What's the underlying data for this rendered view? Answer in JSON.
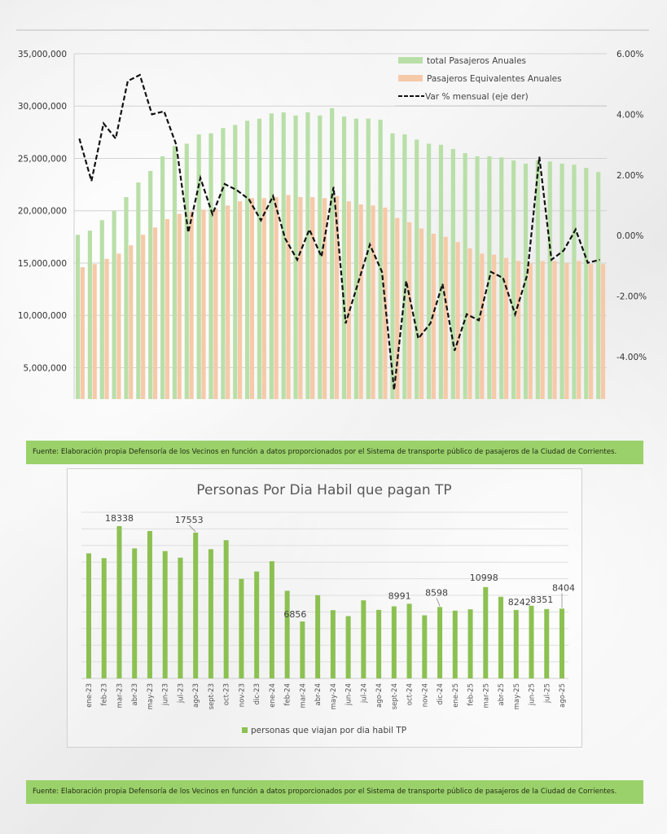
{
  "colors": {
    "total": "#b9dfa8",
    "equivalentes": "#f6c9a8",
    "line": "#111111",
    "bars2": "#8cc152",
    "note_bg": "#9bd16a"
  },
  "chart_data": [
    {
      "type": "bar+line",
      "title": "",
      "categories_count": 44,
      "left_axis": {
        "ylim": [
          2000000,
          35000000
        ],
        "ticks": [
          "35,000,000",
          "30,000,000",
          "25,000,000",
          "20,000,000",
          "15,000,000",
          "10,000,000",
          "5,000,000"
        ],
        "tick_values": [
          35000000,
          30000000,
          25000000,
          20000000,
          15000000,
          10000000,
          5000000
        ]
      },
      "right_axis": {
        "ylim": [
          -5.4,
          6.0
        ],
        "ticks": [
          "6.00%",
          "4.00%",
          "2.00%",
          "0.00%",
          "-2.00%",
          "-4.00%"
        ],
        "tick_values": [
          6,
          4,
          2,
          0,
          -2,
          -4
        ]
      },
      "legend": {
        "placement": "top-right",
        "items": [
          "total Pasajeros Anuales",
          "Pasajeros Equivalentes Anuales",
          "Var % mensual (eje der)"
        ]
      },
      "grid": true,
      "series": [
        {
          "name": "total Pasajeros Anuales",
          "type": "bar",
          "axis": "left",
          "values": [
            17700000,
            18100000,
            19100000,
            20000000,
            21300000,
            22700000,
            23800000,
            25200000,
            26200000,
            26400000,
            27300000,
            27400000,
            27900000,
            28200000,
            28600000,
            28800000,
            29300000,
            29400000,
            29100000,
            29400000,
            29100000,
            29800000,
            29000000,
            28800000,
            28800000,
            28700000,
            27400000,
            27300000,
            26800000,
            26400000,
            26300000,
            25900000,
            25500000,
            25200000,
            25200000,
            25100000,
            24800000,
            24500000,
            24800000,
            24700000,
            24500000,
            24400000,
            24100000,
            23700000
          ]
        },
        {
          "name": "Pasajeros Equivalentes Anuales",
          "type": "bar",
          "axis": "left",
          "values": [
            14600000,
            14900000,
            15400000,
            15900000,
            16700000,
            17700000,
            18400000,
            19200000,
            19700000,
            19900000,
            20100000,
            20200000,
            20500000,
            20900000,
            21200000,
            21200000,
            21300000,
            21500000,
            21300000,
            21300000,
            21200000,
            21400000,
            20900000,
            20600000,
            20500000,
            20300000,
            19300000,
            18900000,
            18300000,
            17800000,
            17500000,
            17000000,
            16400000,
            15900000,
            15800000,
            15500000,
            15200000,
            15000000,
            15200000,
            15200000,
            15000000,
            15200000,
            14900000,
            14900000
          ]
        },
        {
          "name": "Var % mensual (eje der)",
          "type": "line",
          "axis": "right",
          "values": [
            3.2,
            1.8,
            3.7,
            3.2,
            5.1,
            5.3,
            4.0,
            4.1,
            3.0,
            0.1,
            1.9,
            0.7,
            1.7,
            1.5,
            1.2,
            0.5,
            1.3,
            -0.1,
            -0.8,
            0.2,
            -0.7,
            1.6,
            -2.9,
            -1.6,
            -0.3,
            -1.2,
            -5.1,
            -1.5,
            -3.4,
            -2.9,
            -1.6,
            -3.8,
            -2.6,
            -2.8,
            -1.2,
            -1.4,
            -2.6,
            -1.3,
            2.6,
            -0.8,
            -0.5,
            0.2,
            -0.9,
            -0.8
          ]
        }
      ]
    },
    {
      "type": "bar",
      "title": "Personas Por Dia Habil que pagan TP",
      "ylim": [
        0,
        20000
      ],
      "grid": true,
      "legend": {
        "placement": "bottom",
        "items": [
          "personas que viajan por dia habil TP"
        ]
      },
      "categories": [
        "ene-23",
        "feb-23",
        "mar-23",
        "abr-23",
        "may-23",
        "jun-23",
        "jul-23",
        "ago-23",
        "sept-23",
        "oct-23",
        "nov-23",
        "dic-23",
        "ene-24",
        "feb-24",
        "mar-24",
        "abr-24",
        "may-24",
        "jun-24",
        "jul-24",
        "ago-24",
        "sept-24",
        "oct-24",
        "nov-24",
        "dic-24",
        "ene-25",
        "feb-25",
        "mar-25",
        "abr-25",
        "may-25",
        "jun-25",
        "jul-25",
        "ago-25"
      ],
      "values": [
        15060,
        14480,
        18338,
        15650,
        17750,
        15330,
        14540,
        17553,
        15560,
        16640,
        11990,
        12870,
        14110,
        10550,
        6856,
        10020,
        8220,
        7500,
        9400,
        8250,
        8680,
        8991,
        7600,
        8598,
        8160,
        8320,
        10998,
        9830,
        8242,
        8750,
        8351,
        8404
      ],
      "data_labels": {
        "2": "18338",
        "7": "17553",
        "14": "6856",
        "21": "8991",
        "23": "8598",
        "26": "10998",
        "28": "8242",
        "30": "8351",
        "31": "8404"
      }
    }
  ],
  "notes": {
    "source_1": "Fuente: Elaboración propia Defensoría de los Vecinos en función a datos proporcionados por el Sistema de transporte público de pasajeros de la Ciudad de Corrientes.",
    "source_2": "Fuente: Elaboración propia Defensoría de los Vecinos en función a datos proporcionados por el Sistema de transporte público de pasajeros de la Ciudad de Corrientes."
  }
}
